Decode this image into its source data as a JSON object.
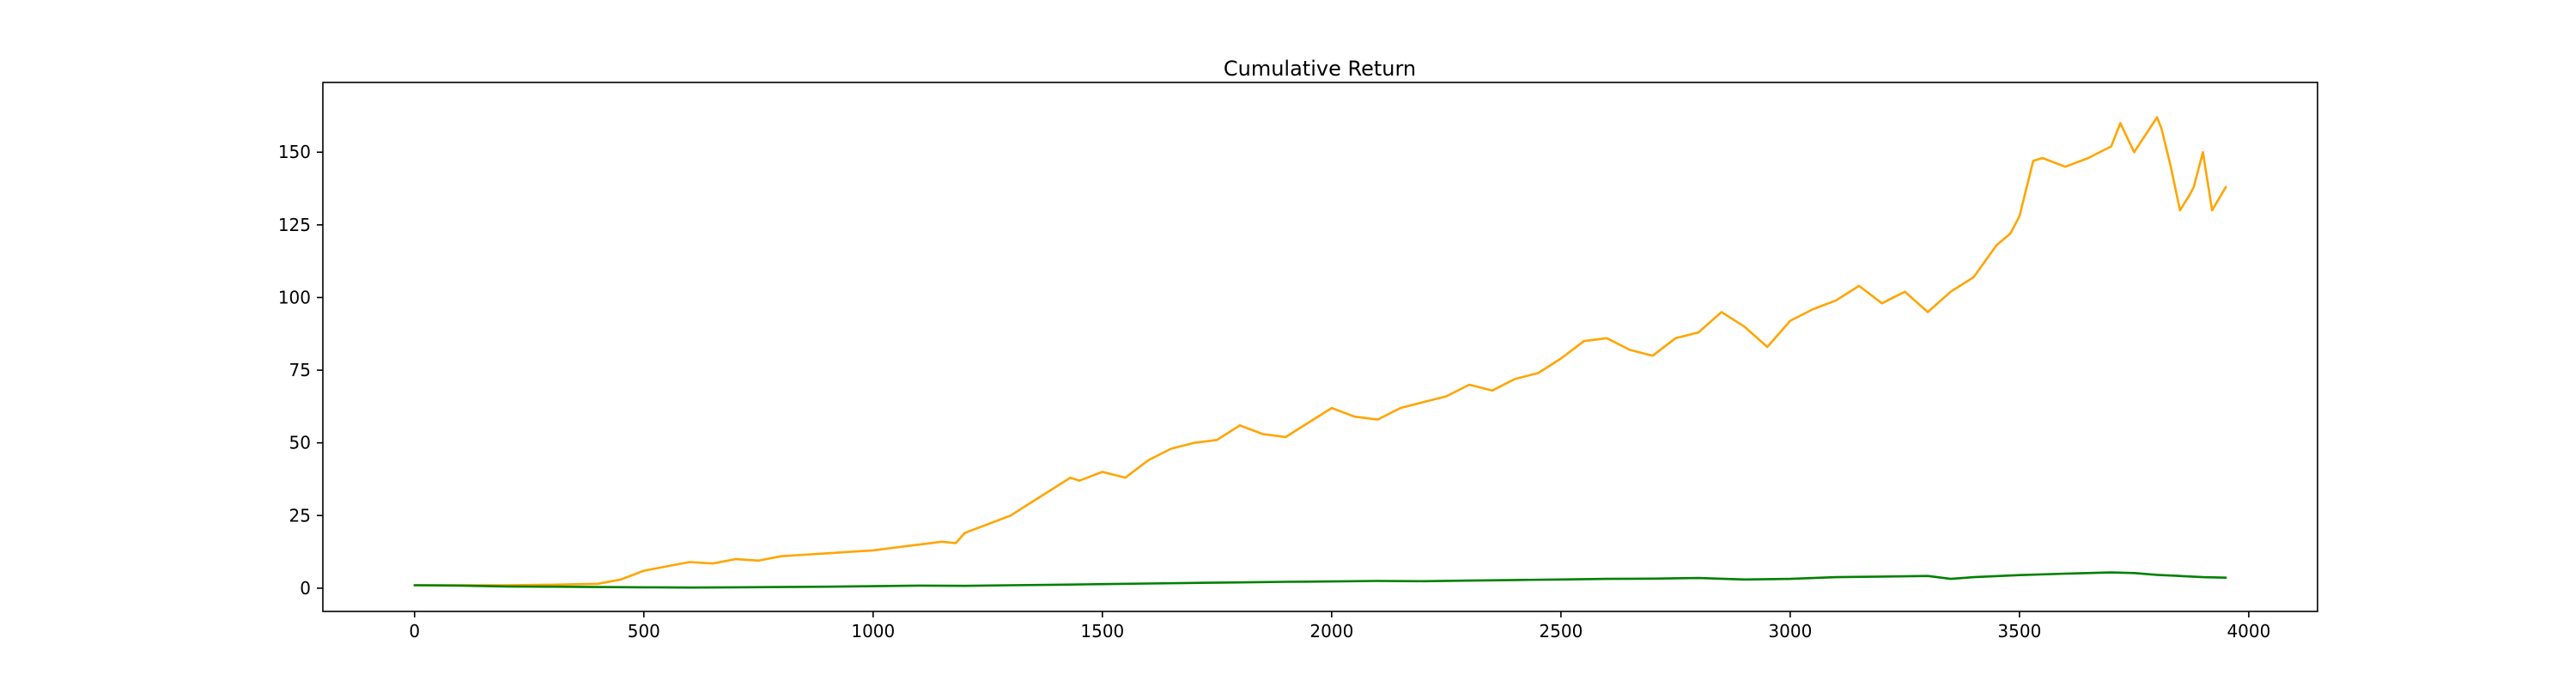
{
  "chart_data": {
    "type": "line",
    "title": "Cumulative Return",
    "xlabel": "",
    "ylabel": "",
    "xlim": [
      -200,
      4150
    ],
    "ylim": [
      -8,
      174
    ],
    "x_ticks": [
      0,
      500,
      1000,
      1500,
      2000,
      2500,
      3000,
      3500,
      4000
    ],
    "y_ticks": [
      0,
      25,
      50,
      75,
      100,
      125,
      150
    ],
    "grid": false,
    "legend": "none",
    "colors": {
      "series_1": "#FFA500",
      "series_2": "#008000"
    },
    "series": [
      {
        "color": "#FFA500",
        "x": [
          0,
          100,
          200,
          300,
          400,
          450,
          500,
          550,
          600,
          650,
          700,
          750,
          800,
          850,
          900,
          950,
          1000,
          1050,
          1100,
          1150,
          1180,
          1200,
          1250,
          1300,
          1350,
          1400,
          1430,
          1450,
          1500,
          1550,
          1600,
          1650,
          1700,
          1750,
          1800,
          1850,
          1900,
          1950,
          2000,
          2050,
          2100,
          2150,
          2200,
          2250,
          2300,
          2350,
          2400,
          2450,
          2500,
          2550,
          2600,
          2650,
          2700,
          2750,
          2800,
          2850,
          2900,
          2950,
          3000,
          3050,
          3100,
          3150,
          3200,
          3250,
          3300,
          3350,
          3400,
          3450,
          3480,
          3500,
          3530,
          3550,
          3600,
          3650,
          3700,
          3720,
          3750,
          3800,
          3810,
          3830,
          3850,
          3870,
          3880,
          3900,
          3920,
          3950
        ],
        "y": [
          1,
          1,
          1,
          1.2,
          1.5,
          3,
          6,
          7.5,
          9,
          8.5,
          10,
          9.5,
          11,
          11.5,
          12,
          12.5,
          13,
          14,
          15,
          16,
          15.5,
          19,
          22,
          25,
          30,
          35,
          38,
          37,
          40,
          38,
          44,
          48,
          50,
          51,
          56,
          53,
          52,
          57,
          62,
          59,
          58,
          62,
          64,
          66,
          70,
          68,
          72,
          74,
          79,
          85,
          86,
          82,
          80,
          86,
          88,
          95,
          90,
          83,
          92,
          96,
          99,
          104,
          98,
          102,
          95,
          102,
          107,
          118,
          122,
          128,
          147,
          148,
          145,
          148,
          152,
          160,
          150,
          162,
          158,
          145,
          130,
          135,
          138,
          150,
          130,
          138
        ]
      },
      {
        "color": "#008000",
        "x": [
          0,
          100,
          200,
          300,
          400,
          500,
          600,
          700,
          800,
          900,
          1000,
          1100,
          1200,
          1300,
          1400,
          1500,
          1600,
          1700,
          1800,
          1900,
          2000,
          2100,
          2200,
          2300,
          2400,
          2500,
          2600,
          2700,
          2800,
          2900,
          3000,
          3100,
          3200,
          3300,
          3350,
          3400,
          3500,
          3600,
          3700,
          3750,
          3800,
          3850,
          3900,
          3950
        ],
        "y": [
          1,
          0.9,
          0.6,
          0.5,
          0.4,
          0.3,
          0.2,
          0.3,
          0.4,
          0.5,
          0.7,
          0.9,
          0.8,
          1.0,
          1.2,
          1.4,
          1.6,
          1.8,
          2.0,
          2.2,
          2.3,
          2.5,
          2.4,
          2.6,
          2.8,
          3.0,
          3.2,
          3.3,
          3.5,
          3.0,
          3.2,
          3.8,
          4.0,
          4.2,
          3.2,
          3.8,
          4.5,
          5.0,
          5.4,
          5.2,
          4.6,
          4.2,
          3.8,
          3.6
        ]
      }
    ]
  }
}
